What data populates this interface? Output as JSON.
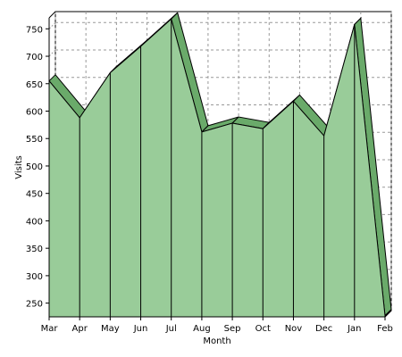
{
  "chart_data": {
    "type": "area",
    "title": "",
    "xlabel": "Month",
    "ylabel": "Visits",
    "categories": [
      "Mar",
      "Apr",
      "May",
      "Jun",
      "Jul",
      "Aug",
      "Sep",
      "Oct",
      "Nov",
      "Dec",
      "Jan",
      "Feb"
    ],
    "values": [
      655,
      588,
      670,
      718,
      768,
      562,
      578,
      568,
      618,
      555,
      758,
      227
    ],
    "ylim": [
      225,
      770
    ],
    "yticks": [
      250,
      300,
      350,
      400,
      450,
      500,
      550,
      600,
      650,
      700,
      750
    ],
    "grid": true,
    "style": "3d",
    "colors": {
      "fill": "#99cc99",
      "side": "#6aaa6a",
      "stroke": "#000000",
      "grid": "#999999"
    }
  }
}
